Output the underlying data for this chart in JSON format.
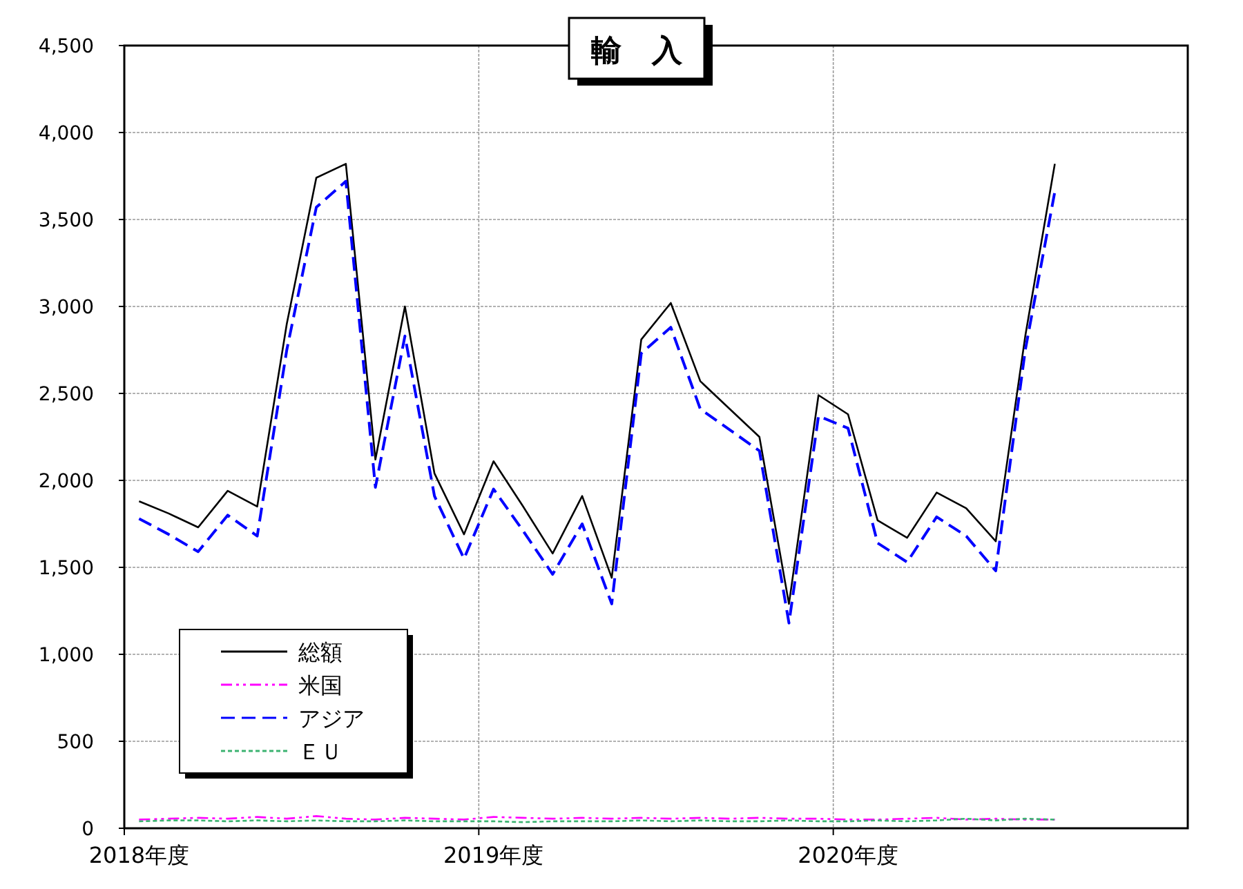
{
  "chart_data": {
    "type": "line",
    "title": "輸　入",
    "categories": [
      "2018年度",
      null,
      null,
      null,
      null,
      null,
      null,
      null,
      null,
      null,
      null,
      null,
      "2019年度",
      null,
      null,
      null,
      null,
      null,
      null,
      null,
      null,
      null,
      null,
      null,
      "2020年度",
      null,
      null,
      null,
      null,
      null,
      null,
      null,
      null,
      null,
      null,
      null
    ],
    "series": [
      {
        "name": "総額",
        "color": "#000000",
        "line_style": "solid",
        "values": [
          1880,
          1810,
          1730,
          1940,
          1850,
          2900,
          3740,
          3820,
          2120,
          3000,
          2040,
          1690,
          2110,
          1850,
          1580,
          1910,
          1440,
          2810,
          3020,
          2570,
          2410,
          2250,
          1290,
          2490,
          2380,
          1770,
          1670,
          1930,
          1840,
          1650,
          2830,
          3820,
          null,
          null,
          null,
          null
        ]
      },
      {
        "name": "米国",
        "color": "#ff00ff",
        "line_style": "dashdotdot",
        "values": [
          50,
          55,
          60,
          55,
          65,
          55,
          70,
          55,
          50,
          60,
          55,
          50,
          65,
          60,
          55,
          60,
          55,
          60,
          55,
          60,
          55,
          60,
          55,
          55,
          50,
          50,
          55,
          60,
          50,
          55,
          50,
          50,
          null,
          null,
          null,
          null
        ]
      },
      {
        "name": "アジア",
        "color": "#0000ff",
        "line_style": "dashed",
        "values": [
          1780,
          1690,
          1590,
          1800,
          1680,
          2750,
          3570,
          3720,
          1960,
          2830,
          1910,
          1550,
          1950,
          1710,
          1460,
          1750,
          1290,
          2730,
          2880,
          2410,
          2290,
          2170,
          1180,
          2370,
          2300,
          1640,
          1530,
          1790,
          1680,
          1480,
          2750,
          3660,
          null,
          null,
          null,
          null
        ]
      },
      {
        "name": "ＥＵ",
        "color": "#3cb371",
        "line_style": "dotted",
        "values": [
          40,
          45,
          45,
          40,
          45,
          40,
          45,
          40,
          40,
          45,
          40,
          40,
          40,
          35,
          40,
          40,
          40,
          45,
          40,
          45,
          40,
          40,
          45,
          40,
          40,
          45,
          40,
          45,
          55,
          45,
          55,
          50,
          null,
          null,
          null,
          null
        ]
      }
    ],
    "ylim": [
      0,
      4500
    ],
    "yticks": [
      {
        "value": 0,
        "label": "0"
      },
      {
        "value": 500,
        "label": "500"
      },
      {
        "value": 1000,
        "label": "1,000"
      },
      {
        "value": 1500,
        "label": "1,500"
      },
      {
        "value": 2000,
        "label": "2,000"
      },
      {
        "value": 2500,
        "label": "2,500"
      },
      {
        "value": 3000,
        "label": "3,000"
      },
      {
        "value": 3500,
        "label": "3,500"
      },
      {
        "value": 4000,
        "label": "4,000"
      },
      {
        "value": 4500,
        "label": "4,500"
      }
    ],
    "grid": true,
    "legend": "bottom left",
    "marker": "none"
  }
}
